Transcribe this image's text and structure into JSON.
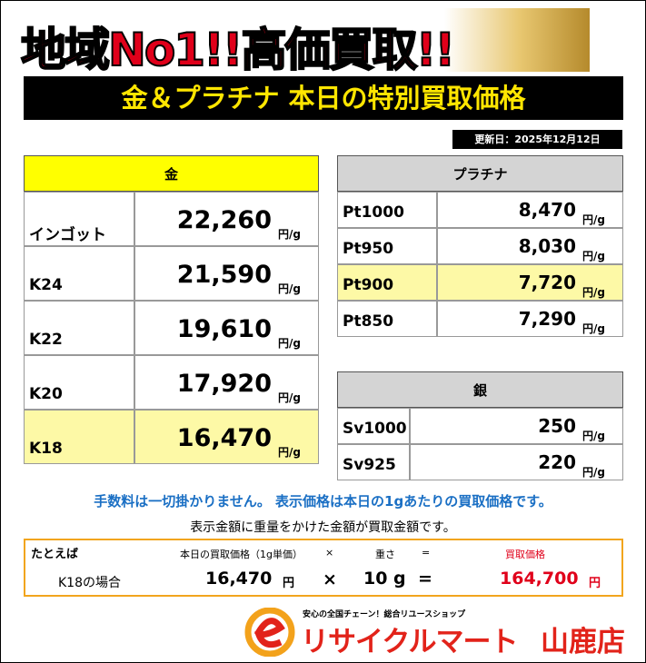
{
  "header": {
    "title": "地域No1!!高価買取!!",
    "subtitle": "金＆プラチナ 本日の特別買取価格",
    "updated": "更新日：2025年12月12日"
  },
  "price_unit": "円/g",
  "gold": {
    "title": "金",
    "rows": [
      {
        "name": "インゴット",
        "price": "22,260"
      },
      {
        "name": "K24",
        "price": "21,590"
      },
      {
        "name": "K22",
        "price": "19,610"
      },
      {
        "name": "K20",
        "price": "17,920"
      },
      {
        "name": "K18",
        "price": "16,470",
        "highlighted": true
      }
    ]
  },
  "platinum": {
    "title": "プラチナ",
    "rows": [
      {
        "name": "Pt1000",
        "price": "8,470"
      },
      {
        "name": "Pt950",
        "price": "8,030"
      },
      {
        "name": "Pt900",
        "price": "7,720",
        "highlighted": true
      },
      {
        "name": "Pt850",
        "price": "7,290"
      }
    ]
  },
  "silver": {
    "title": "銀",
    "rows": [
      {
        "name": "Sv1000",
        "price": "250"
      },
      {
        "name": "Sv925",
        "price": "220"
      }
    ]
  },
  "notes": {
    "fee": "手数料は一切掛かりません。 表示価格は本日の1gあたりの買取価格です。",
    "formula": "表示金額に重量をかけた金額が買取金額です。"
  },
  "example": {
    "label": "たとえば",
    "head_price": "本日の買取価格（1g単価）",
    "head_times": "×",
    "head_weight": "重さ",
    "head_equals": "=",
    "head_total": "買取価格",
    "case": "K18の場合",
    "price": "16,470",
    "price_unit": "円",
    "times": "×",
    "weight": "10 g",
    "equals": "=",
    "total": "164,700",
    "total_unit": "円"
  },
  "footer": {
    "tagline": "安心の全国チェーン！総合リユースショップ",
    "brand": "リサイクルマート",
    "store": "山鹿店"
  }
}
